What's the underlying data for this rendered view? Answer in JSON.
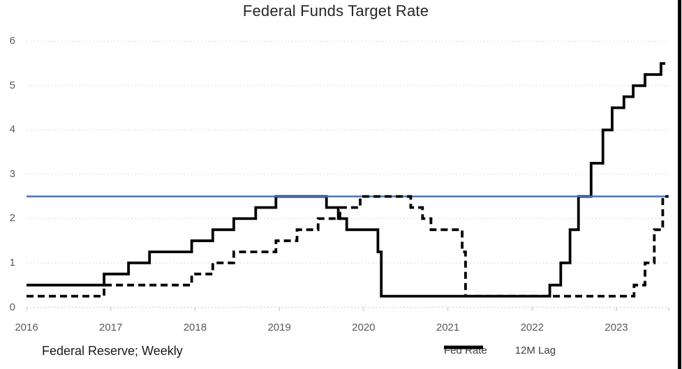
{
  "chart_data": {
    "type": "line",
    "title": "Federal Funds Target Rate",
    "source_note": "Federal Reserve; Weekly",
    "xlabel": "",
    "ylabel": "",
    "xlim": [
      2016,
      2023.75
    ],
    "ylim": [
      0,
      6
    ],
    "x_ticks": [
      2016,
      2017,
      2018,
      2019,
      2020,
      2021,
      2022,
      2023
    ],
    "y_ticks": [
      0,
      1,
      2,
      3,
      4,
      5,
      6
    ],
    "grid": "horizontal-dashed",
    "legend_position": "bottom-right",
    "reference_line": {
      "value": 2.5,
      "style": "solid",
      "color": "#4472C4"
    },
    "series": [
      {
        "name": "Fed Rate",
        "style": "solid",
        "color": "#000000",
        "end_x": 2023.58,
        "step_points": [
          [
            2016.0,
            0.5
          ],
          [
            2016.92,
            0.75
          ],
          [
            2017.21,
            1.0
          ],
          [
            2017.46,
            1.25
          ],
          [
            2017.96,
            1.5
          ],
          [
            2018.21,
            1.75
          ],
          [
            2018.46,
            2.0
          ],
          [
            2018.72,
            2.25
          ],
          [
            2018.96,
            2.5
          ],
          [
            2019.56,
            2.25
          ],
          [
            2019.7,
            2.0
          ],
          [
            2019.8,
            1.75
          ],
          [
            2020.17,
            1.25
          ],
          [
            2020.21,
            0.25
          ],
          [
            2022.21,
            0.5
          ],
          [
            2022.34,
            1.0
          ],
          [
            2022.45,
            1.75
          ],
          [
            2022.55,
            2.5
          ],
          [
            2022.7,
            3.25
          ],
          [
            2022.84,
            4.0
          ],
          [
            2022.95,
            4.5
          ],
          [
            2023.09,
            4.75
          ],
          [
            2023.2,
            5.0
          ],
          [
            2023.34,
            5.25
          ],
          [
            2023.53,
            5.5
          ]
        ]
      },
      {
        "name": "12M Lag",
        "style": "dashed",
        "color": "#000000",
        "end_x": 2023.62,
        "step_points": [
          [
            2016.0,
            0.25
          ],
          [
            2016.92,
            0.5
          ],
          [
            2017.96,
            0.75
          ],
          [
            2018.21,
            1.0
          ],
          [
            2018.46,
            1.25
          ],
          [
            2018.96,
            1.5
          ],
          [
            2019.21,
            1.75
          ],
          [
            2019.46,
            2.0
          ],
          [
            2019.72,
            2.25
          ],
          [
            2019.96,
            2.5
          ],
          [
            2020.56,
            2.25
          ],
          [
            2020.7,
            2.0
          ],
          [
            2020.8,
            1.75
          ],
          [
            2021.17,
            1.25
          ],
          [
            2021.21,
            0.25
          ],
          [
            2023.21,
            0.5
          ],
          [
            2023.34,
            1.0
          ],
          [
            2023.45,
            1.75
          ],
          [
            2023.55,
            2.5
          ]
        ]
      }
    ]
  },
  "colors": {
    "axis_label": "#595959",
    "gridline": "#d9d9d9",
    "axis_line": "#c9c9c9",
    "tick": "#bfbfbf",
    "title": "#262626",
    "legend_text": "#404040",
    "reference_blue": "#4472C4",
    "series_black": "#000000",
    "page_border": "#000000"
  }
}
